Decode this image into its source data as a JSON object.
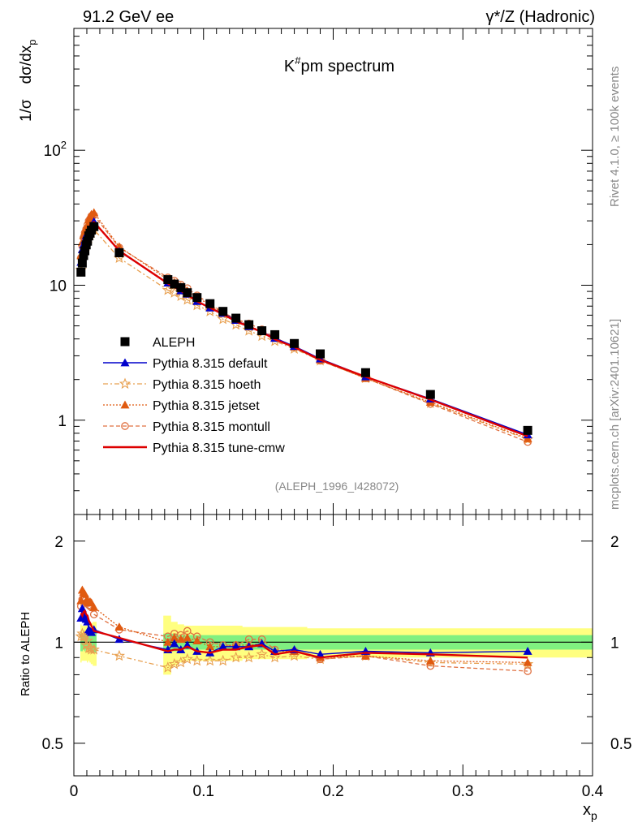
{
  "header": {
    "left": "91.2 GeV ee",
    "right": "γ*/Z (Hadronic)"
  },
  "side_text": {
    "rivet": "Rivet 4.1.0, ≥ 100k events",
    "mcplots": "mcplots.cern.ch [arXiv:2401.10621]"
  },
  "colors": {
    "data": "#000000",
    "default": "#0000cc",
    "hoeth": "#e8a050",
    "jetset": "#e05a10",
    "montull": "#e07040",
    "tune_cmw": "#dd0000",
    "band_inner": "#80f080",
    "band_outer": "#ffff80"
  },
  "chart_data": [
    {
      "type": "scatter",
      "panel": "main",
      "title": "K#pm spectrum",
      "ylabel": "1/σ dσ/dx_p",
      "xlabel": "x_p",
      "log_y": true,
      "xlim": [
        0,
        0.4
      ],
      "ylim": [
        0.2,
        800
      ],
      "y_ticks": [
        "1",
        "10",
        "10^2"
      ],
      "x": [
        0.0055,
        0.0065,
        0.0075,
        0.0085,
        0.0095,
        0.0105,
        0.0115,
        0.0125,
        0.0135,
        0.0155,
        0.035,
        0.0725,
        0.0775,
        0.0825,
        0.0875,
        0.095,
        0.105,
        0.115,
        0.125,
        0.135,
        0.145,
        0.155,
        0.17,
        0.19,
        0.225,
        0.275,
        0.35
      ],
      "legend": [
        "ALEPH",
        "Pythia 8.315 default",
        "Pythia 8.315 hoeth",
        "Pythia 8.315 jetset",
        "Pythia 8.315 montull",
        "Pythia 8.315 tune-cmw"
      ],
      "series": [
        {
          "name": "ALEPH",
          "values": [
            12.5,
            14.6,
            16.6,
            18.0,
            19.9,
            21.2,
            23.2,
            24.3,
            25.6,
            27.2,
            17.4,
            11.0,
            10.2,
            9.6,
            8.8,
            8.1,
            7.3,
            6.4,
            5.7,
            5.1,
            4.6,
            4.3,
            3.7,
            3.1,
            2.25,
            1.55,
            0.84
          ]
        },
        {
          "name": "Pythia 8.315 default",
          "values": [
            14.8,
            18.4,
            20.0,
            21.6,
            23.3,
            24.4,
            25.2,
            26.2,
            27.5,
            29.6,
            17.8,
            10.4,
            10.1,
            9.1,
            8.6,
            7.6,
            6.8,
            6.2,
            5.5,
            4.94,
            4.54,
            4.05,
            3.53,
            2.85,
            2.1,
            1.44,
            0.78
          ]
        },
        {
          "name": "Pythia 8.315 hoeth",
          "values": [
            13.0,
            15.5,
            17.2,
            18.8,
            19.6,
            21.5,
            22.3,
            23.4,
            24.4,
            25.8,
            15.9,
            9.2,
            8.8,
            8.3,
            7.8,
            7.1,
            6.4,
            5.6,
            5.1,
            4.6,
            4.2,
            3.85,
            3.38,
            2.76,
            2.05,
            1.34,
            0.72
          ]
        },
        {
          "name": "Pythia 8.315 jetset",
          "values": [
            16.6,
            20.9,
            23.4,
            25.0,
            26.5,
            28.0,
            30.5,
            32.0,
            33.5,
            34.5,
            19.3,
            11.0,
            10.5,
            9.8,
            9.1,
            8.2,
            7.1,
            6.2,
            5.6,
            5.0,
            4.55,
            4.05,
            3.5,
            2.8,
            2.04,
            1.36,
            0.73
          ]
        },
        {
          "name": "Pythia 8.315 montull",
          "values": [
            16.0,
            19.5,
            22.5,
            24.5,
            26.0,
            28.0,
            30.0,
            31.0,
            32.5,
            33.0,
            19.0,
            11.4,
            10.8,
            10.1,
            9.5,
            8.4,
            7.3,
            6.3,
            5.6,
            5.2,
            4.7,
            4.1,
            3.48,
            2.76,
            2.05,
            1.32,
            0.69
          ]
        },
        {
          "name": "Pythia 8.315 tune-cmw",
          "values": [
            15.2,
            17.5,
            20.5,
            22.3,
            24.0,
            25.5,
            26.8,
            27.8,
            28.7,
            29.4,
            18.0,
            10.3,
            9.7,
            9.1,
            8.5,
            7.6,
            6.8,
            6.1,
            5.4,
            4.94,
            4.5,
            3.97,
            3.48,
            2.8,
            2.1,
            1.42,
            0.76
          ]
        }
      ],
      "annotation": "(ALEPH_1996_I428072)"
    },
    {
      "type": "line",
      "panel": "ratio",
      "ylabel": "Ratio to ALEPH",
      "xlabel": "x_p",
      "log_y": true,
      "xlim": [
        0,
        0.4
      ],
      "ylim": [
        0.4,
        2.4
      ],
      "y_ticks": [
        "0.5",
        "1",
        "2"
      ],
      "x_ticks": [
        "0",
        "0.1",
        "0.2",
        "0.3",
        "0.4"
      ],
      "x": [
        0.0055,
        0.0065,
        0.0075,
        0.0085,
        0.0095,
        0.0105,
        0.0115,
        0.0125,
        0.0135,
        0.0155,
        0.035,
        0.0725,
        0.0775,
        0.0825,
        0.0875,
        0.095,
        0.105,
        0.115,
        0.125,
        0.135,
        0.145,
        0.155,
        0.17,
        0.19,
        0.225,
        0.275,
        0.35
      ],
      "band": {
        "x": [
          0.0055,
          0.0065,
          0.0075,
          0.0085,
          0.0095,
          0.0105,
          0.0115,
          0.0125,
          0.0135,
          0.0155,
          0.035,
          0.0725,
          0.0775,
          0.0825,
          0.0875,
          0.095,
          0.105,
          0.115,
          0.125,
          0.135,
          0.145,
          0.155,
          0.17,
          0.19,
          0.225,
          0.275,
          0.35
        ],
        "inner_half": [
          0.06,
          0.06,
          0.05,
          0.06,
          0.05,
          0.05,
          0.05,
          0.06,
          0.06,
          0.07,
          0.05,
          0.06,
          0.06,
          0.05,
          0.05,
          0.05,
          0.05,
          0.05,
          0.05,
          0.05,
          0.05,
          0.05,
          0.05,
          0.05,
          0.05,
          0.05,
          0.05
        ],
        "outer_half": [
          0.13,
          0.12,
          0.12,
          0.12,
          0.12,
          0.13,
          0.12,
          0.13,
          0.14,
          0.15,
          0.12,
          0.2,
          0.15,
          0.13,
          0.12,
          0.12,
          0.12,
          0.12,
          0.12,
          0.11,
          0.11,
          0.11,
          0.11,
          0.1,
          0.1,
          0.1,
          0.1
        ]
      },
      "series": [
        {
          "name": "Pythia 8.315 default",
          "values": [
            1.18,
            1.26,
            1.2,
            1.2,
            1.17,
            1.15,
            1.09,
            1.08,
            1.07,
            1.09,
            1.02,
            0.95,
            0.99,
            0.95,
            0.98,
            0.94,
            0.93,
            0.97,
            0.97,
            0.97,
            0.99,
            0.94,
            0.95,
            0.92,
            0.94,
            0.93,
            0.94
          ]
        },
        {
          "name": "Pythia 8.315 hoeth",
          "values": [
            1.04,
            1.06,
            1.04,
            1.04,
            0.98,
            1.01,
            0.96,
            0.96,
            0.95,
            0.95,
            0.91,
            0.84,
            0.86,
            0.87,
            0.89,
            0.88,
            0.88,
            0.88,
            0.9,
            0.9,
            0.92,
            0.9,
            0.91,
            0.89,
            0.91,
            0.87,
            0.86
          ]
        },
        {
          "name": "Pythia 8.315 jetset",
          "values": [
            1.33,
            1.43,
            1.41,
            1.39,
            1.33,
            1.32,
            1.31,
            1.32,
            1.31,
            1.27,
            1.11,
            1.0,
            1.03,
            1.02,
            1.03,
            1.01,
            0.97,
            0.97,
            0.98,
            0.98,
            0.99,
            0.94,
            0.94,
            0.9,
            0.91,
            0.88,
            0.87
          ]
        },
        {
          "name": "Pythia 8.315 montull",
          "values": [
            1.28,
            1.34,
            1.36,
            1.36,
            1.31,
            1.32,
            1.29,
            1.28,
            1.27,
            1.21,
            1.09,
            1.04,
            1.06,
            1.05,
            1.08,
            1.04,
            1.0,
            0.98,
            0.98,
            1.02,
            1.02,
            0.95,
            0.94,
            0.89,
            0.91,
            0.85,
            0.82
          ]
        },
        {
          "name": "Pythia 8.315 tune-cmw",
          "values": [
            1.22,
            1.2,
            1.23,
            1.24,
            1.21,
            1.2,
            1.16,
            1.14,
            1.12,
            1.08,
            1.03,
            0.94,
            0.95,
            0.95,
            0.97,
            0.94,
            0.93,
            0.95,
            0.95,
            0.97,
            0.98,
            0.92,
            0.94,
            0.9,
            0.93,
            0.92,
            0.9
          ]
        }
      ]
    }
  ]
}
